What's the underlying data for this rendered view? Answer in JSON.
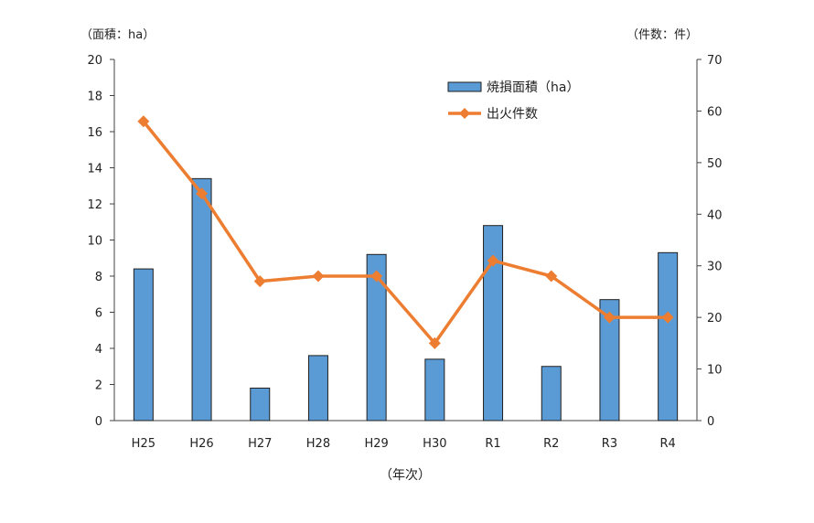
{
  "chart_data": {
    "type": "bar+line",
    "categories": [
      "H25",
      "H26",
      "H27",
      "H28",
      "H29",
      "H30",
      "R1",
      "R2",
      "R3",
      "R4"
    ],
    "series": [
      {
        "name": "焼損面積（ha）",
        "type": "bar",
        "axis": "left",
        "color": "#5B9BD5",
        "values": [
          8.4,
          13.4,
          1.8,
          3.6,
          9.2,
          3.4,
          10.8,
          3.0,
          6.7,
          9.3
        ]
      },
      {
        "name": "出火件数",
        "type": "line",
        "axis": "right",
        "color": "#ED7D31",
        "marker": "diamond",
        "values": [
          58,
          44,
          27,
          28,
          28,
          15,
          31,
          28,
          20,
          20
        ]
      }
    ],
    "left_axis": {
      "unit_label": "（面積：ha）",
      "ylim": [
        0,
        20
      ],
      "ticks": [
        "0",
        "2",
        "4",
        "6",
        "8",
        "10",
        "12",
        "14",
        "16",
        "18",
        "20"
      ]
    },
    "right_axis": {
      "unit_label": "（件数：件）",
      "ylim": [
        0,
        70
      ],
      "ticks": [
        "0",
        "10",
        "20",
        "30",
        "40",
        "50",
        "60",
        "70"
      ]
    },
    "xlabel": "（年次）",
    "grid": false,
    "legend_position": "top-right"
  }
}
